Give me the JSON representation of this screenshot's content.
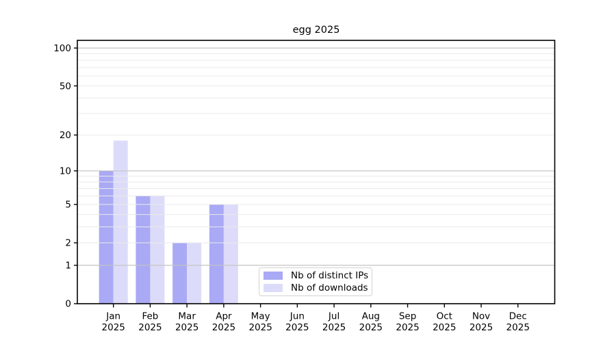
{
  "chart_data": {
    "type": "bar",
    "title": "egg 2025",
    "categories": [
      "Jan",
      "Feb",
      "Mar",
      "Apr",
      "May",
      "Jun",
      "Jul",
      "Aug",
      "Sep",
      "Oct",
      "Nov",
      "Dec"
    ],
    "x_tick_year": "2025",
    "series": [
      {
        "name": "Nb of distinct IPs",
        "color": "#a9a9f5",
        "values": [
          10,
          6,
          2,
          5,
          0,
          0,
          0,
          0,
          0,
          0,
          0,
          0
        ]
      },
      {
        "name": "Nb of downloads",
        "color": "#dcdcfa",
        "values": [
          18,
          6,
          2,
          5,
          0,
          0,
          0,
          0,
          0,
          0,
          0,
          0
        ]
      }
    ],
    "xlabel": "",
    "ylabel": "",
    "yscale": "log1p",
    "ylim": [
      0,
      115
    ],
    "yticks": [
      0,
      1,
      2,
      5,
      10,
      20,
      50,
      100
    ],
    "grid": {
      "show": true,
      "major_lines_at": [
        1,
        10,
        100
      ],
      "minor_lines_at": [
        2,
        3,
        4,
        5,
        6,
        7,
        8,
        9,
        20,
        30,
        40,
        50,
        60,
        70,
        80,
        90
      ]
    },
    "legend": {
      "labels": [
        "Nb of distinct IPs",
        "Nb of downloads"
      ],
      "position": "lower center"
    },
    "colors": {
      "background": "#ffffff",
      "axis": "#000000",
      "text": "#000000",
      "grid_minor": "#eaeaea",
      "grid_major": "#c3c3c3",
      "legend_border": "#d2d2d2"
    }
  }
}
